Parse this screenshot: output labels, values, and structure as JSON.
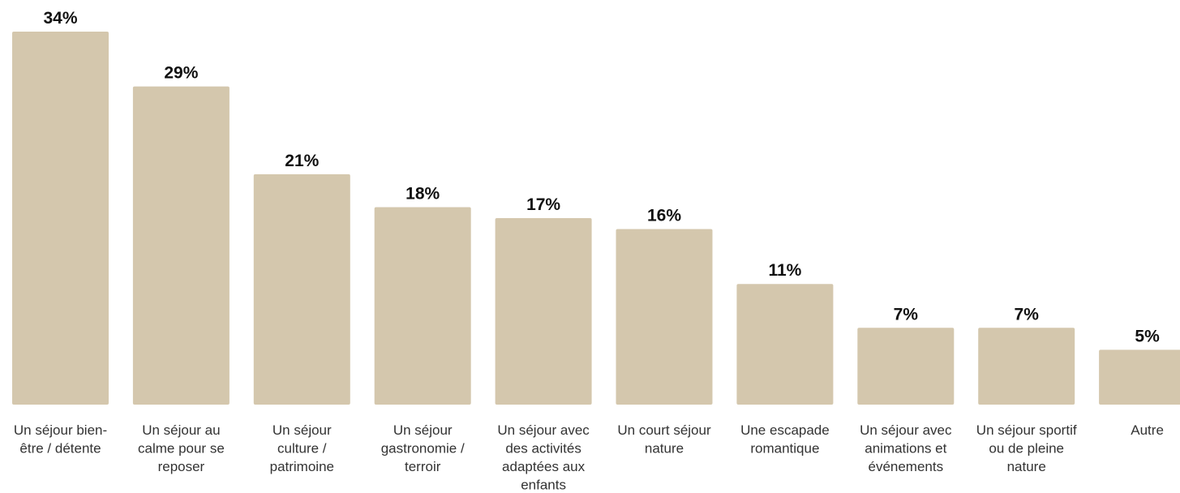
{
  "colors": {
    "bar": "#d4c7ad",
    "value_text": "#111111",
    "label_text": "#333333",
    "background": "#ffffff"
  },
  "chart_data": {
    "type": "bar",
    "title": "",
    "xlabel": "",
    "ylabel": "",
    "ylim": [
      0,
      34
    ],
    "grid": false,
    "legend": "none",
    "value_suffix": "%",
    "categories": [
      "Un séjour bien-être / détente",
      "Un séjour au calme pour se reposer",
      "Un séjour culture / patrimoine",
      "Un séjour gastronomie / terroir",
      "Un séjour avec des activités adaptées aux enfants",
      "Un court séjour nature",
      "Une escapade romantique",
      "Un séjour avec animations et événements",
      "Un séjour sportif ou de pleine nature",
      "Autre"
    ],
    "category_label_lines": [
      [
        "Un séjour bien-",
        "être / détente"
      ],
      [
        "Un séjour au",
        "calme pour se",
        "reposer"
      ],
      [
        "Un séjour",
        "culture /",
        "patrimoine"
      ],
      [
        "Un séjour",
        "gastronomie /",
        "terroir"
      ],
      [
        "Un séjour avec",
        "des activités",
        "adaptées aux",
        "enfants"
      ],
      [
        "Un court séjour",
        "nature"
      ],
      [
        "Une escapade",
        "romantique"
      ],
      [
        "Un séjour avec",
        "animations et",
        "événements"
      ],
      [
        "Un séjour sportif",
        "ou de pleine",
        "nature"
      ],
      [
        "Autre"
      ]
    ],
    "values": [
      34,
      29,
      21,
      18,
      17,
      16,
      11,
      7,
      7,
      5
    ],
    "data_labels": [
      "34%",
      "29%",
      "21%",
      "18%",
      "17%",
      "16%",
      "11%",
      "7%",
      "7%",
      "5%"
    ]
  }
}
